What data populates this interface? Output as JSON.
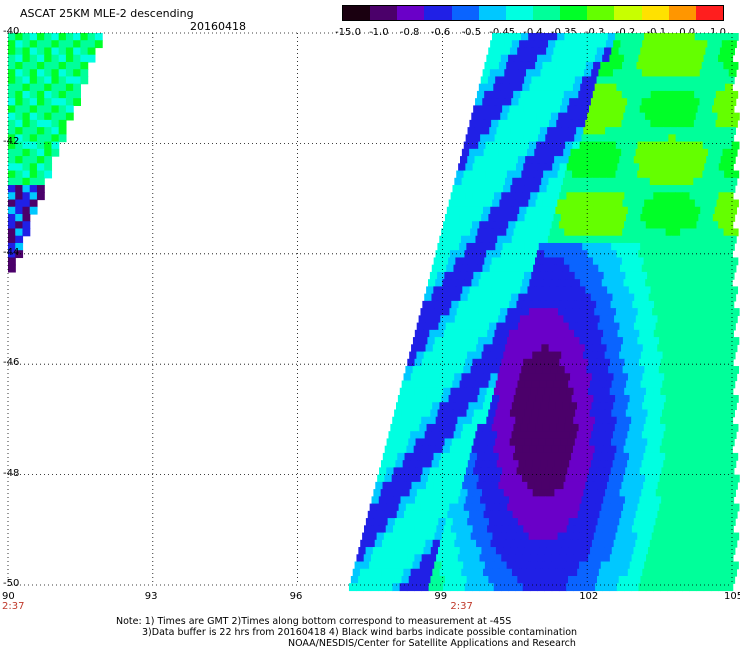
{
  "header": {
    "title": "ASCAT 25KM MLE-2 descending",
    "date": "20160418"
  },
  "colorbar": {
    "labels": [
      "-15.0",
      "-1.0",
      "-0.8",
      "-0.6",
      "-0.5",
      "-0.45",
      "-0.4",
      "-0.35",
      "-0.3",
      "-0.2",
      "-0.1",
      "0.0",
      "1.0"
    ],
    "colors": [
      "#1a0010",
      "#4b006a",
      "#6a00c8",
      "#2020e6",
      "#0a64ff",
      "#00c8ff",
      "#00ffe1",
      "#00ff9a",
      "#00ff28",
      "#64ff00",
      "#c8ff00",
      "#ffe100",
      "#ff9600",
      "#ff1e1e"
    ]
  },
  "map": {
    "lon_range": [
      90,
      105
    ],
    "lat_range": [
      -50,
      -40
    ],
    "lon_ticks": [
      "90",
      "93",
      "96",
      "99",
      "102",
      "105"
    ],
    "lat_ticks": [
      "-40",
      "-42",
      "-44",
      "-46",
      "-48",
      "-50"
    ],
    "time_labels": [
      {
        "lon": 90,
        "text": "2:37"
      },
      {
        "lon": 99,
        "text": "2:37"
      }
    ]
  },
  "notes": {
    "line1": "Note: 1) Times are GMT 2)Times along bottom correspond to measurement at -45S",
    "line2": "3)Data buffer is 22 hrs from 20160418 4) Black wind barbs indicate possible contamination",
    "line3": "NOAA/NESDIS/Center for Satellite Applications and Research"
  }
}
